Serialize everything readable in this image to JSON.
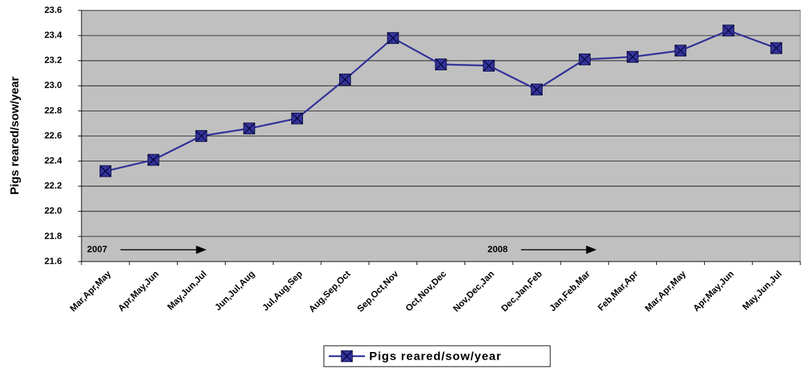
{
  "chart_data": {
    "type": "line",
    "y_label": "Pigs reared/sow/year",
    "categories": [
      "Mar,Apr,May",
      "Apr,May,Jun",
      "May,Jun,Jul",
      "Jun,Jul,Aug",
      "Jul,Aug,Sep",
      "Aug,Sep,Oct",
      "Sep,Oct,Nov",
      "Oct,Nov,Dec",
      "Nov,Dec,Jan",
      "Dec,Jan,Feb",
      "Jan,Feb,Mar",
      "Feb,Mar,Apr",
      "Mar,Apr,May",
      "Apr,May,Jun",
      "May,Jun,Jul"
    ],
    "series": [
      {
        "name": "Pigs reared/sow/year",
        "color": "#333399",
        "values": [
          22.32,
          22.41,
          22.6,
          22.66,
          22.74,
          23.05,
          23.38,
          23.17,
          23.16,
          22.97,
          23.21,
          23.23,
          23.28,
          23.44,
          23.3
        ]
      }
    ],
    "ylim": [
      21.6,
      23.6
    ],
    "yticks": [
      21.6,
      21.8,
      {
        "value": 22,
        "label": "22.0"
      },
      22.2,
      22.4,
      22.6,
      22.8,
      {
        "value": 23,
        "label": "23.0"
      },
      23.2,
      23.4,
      23.6
    ],
    "grid": true,
    "plot_background": "#c0c0c0",
    "annotations": [
      "2007",
      "2008"
    ]
  }
}
